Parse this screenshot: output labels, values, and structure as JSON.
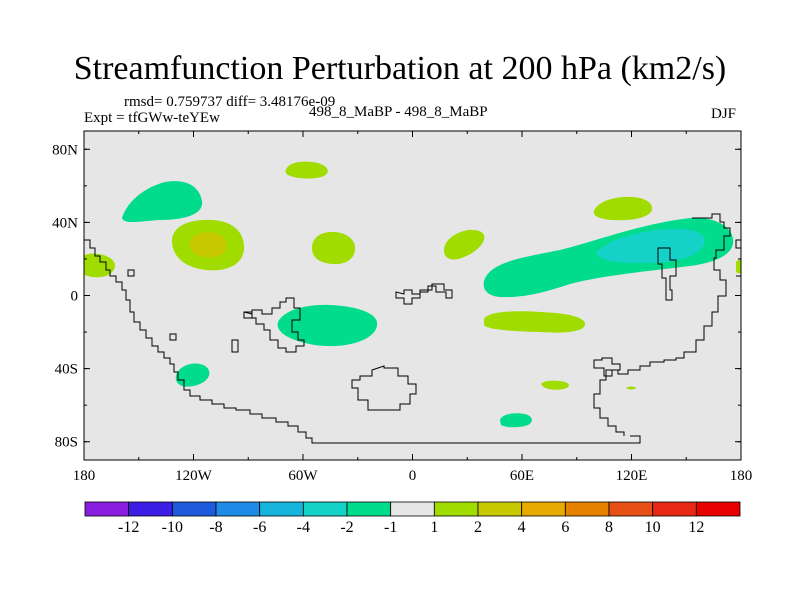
{
  "title": "Streamfunction Perturbation at 200 hPa (km2/s)",
  "stats": "rmsd= 0.759737 diff= 3.48176e-09",
  "experiment": "Expt = tfGWw-teYEw",
  "case_label": "498_8_MaBP - 498_8_MaBP",
  "season": "DJF",
  "lat_ticks": [
    "80N",
    "40N",
    "0",
    "40S",
    "80S"
  ],
  "lon_ticks": [
    "180",
    "120W",
    "60W",
    "0",
    "60E",
    "120E",
    "180"
  ],
  "colorbar": {
    "labels": [
      "-12",
      "-10",
      "-8",
      "-6",
      "-4",
      "-2",
      "-1",
      "1",
      "2",
      "4",
      "6",
      "8",
      "10",
      "12"
    ],
    "colors": [
      "#8a1ee0",
      "#3c1ee6",
      "#1e5adc",
      "#1e8ce6",
      "#14b4dc",
      "#14d2c8",
      "#00dc8c",
      "#e6e6e6",
      "#a0dc00",
      "#c8c800",
      "#e6aa00",
      "#e68200",
      "#e65014",
      "#e62814",
      "#e60000"
    ]
  },
  "colors": {
    "background": "#e6e6e6",
    "coast": "#000000"
  },
  "chart_data": {
    "type": "heatmap",
    "variable": "Streamfunction Perturbation",
    "level_hPa": 200,
    "units": "km2/s",
    "contour_levels": [
      -12,
      -10,
      -8,
      -6,
      -4,
      -2,
      -1,
      1,
      2,
      4,
      6,
      8,
      10,
      12
    ],
    "lon_range": [
      -180,
      180
    ],
    "lat_range": [
      -90,
      90
    ],
    "features": [
      {
        "sign": "negative",
        "range": [
          -2,
          -1
        ],
        "center_lon": -120,
        "center_lat": 50
      },
      {
        "sign": "positive",
        "range": [
          2,
          4
        ],
        "center_lon": -110,
        "center_lat": 28
      },
      {
        "sign": "positive",
        "range": [
          1,
          2
        ],
        "center_lon": -43,
        "center_lat": 25
      },
      {
        "sign": "positive",
        "range": [
          1,
          2
        ],
        "center_lon": -57,
        "center_lat": 67
      },
      {
        "sign": "positive",
        "range": [
          1,
          2
        ],
        "center_lon": 30,
        "center_lat": 27
      },
      {
        "sign": "negative",
        "range": [
          -4,
          -2
        ],
        "center_lon": 140,
        "center_lat": 27
      },
      {
        "sign": "negative",
        "range": [
          -2,
          -1
        ],
        "center_lon": 110,
        "center_lat": 22
      },
      {
        "sign": "positive",
        "range": [
          1,
          2
        ],
        "center_lon": 108,
        "center_lat": 47
      },
      {
        "sign": "positive",
        "range": [
          1,
          2
        ],
        "center_lon": 70,
        "center_lat": -15
      },
      {
        "sign": "negative",
        "range": [
          -2,
          -1
        ],
        "center_lon": -50,
        "center_lat": -15
      },
      {
        "sign": "negative",
        "range": [
          -2,
          -1
        ],
        "center_lon": -120,
        "center_lat": -45
      },
      {
        "sign": "positive",
        "range": [
          1,
          2
        ],
        "center_lon": -170,
        "center_lat": 17
      },
      {
        "sign": "negative",
        "range": [
          -2,
          -1
        ],
        "center_lon": 58,
        "center_lat": -70
      }
    ]
  }
}
